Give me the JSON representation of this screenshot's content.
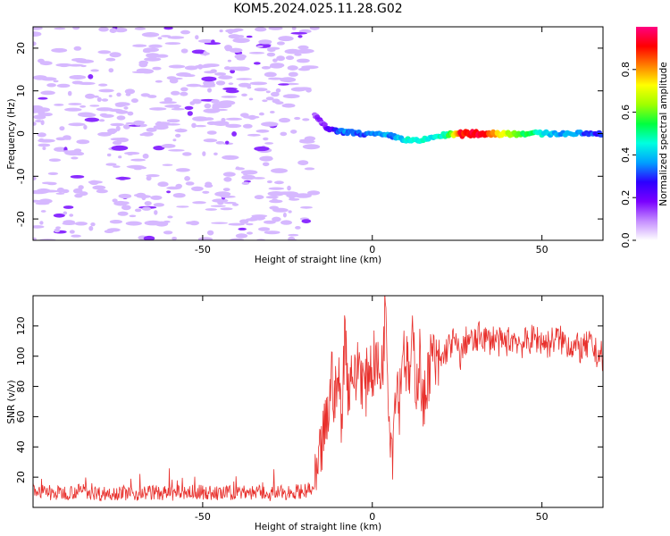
{
  "title": "KOM5.2024.025.11.28.G02",
  "colors": {
    "speckle": "#d6b8ff",
    "line": "#e8302c",
    "colorbar_stops": [
      "#ffffff",
      "#c48cff",
      "#7a00ff",
      "#2d00ff",
      "#00a0ff",
      "#00ffe0",
      "#00ff40",
      "#a0ff00",
      "#ffff00",
      "#ff8000",
      "#ff0000",
      "#ff0080"
    ]
  },
  "chart_data": [
    {
      "type": "heatmap",
      "xlabel": "Height of straight line (km)",
      "ylabel": "Frequency (Hz)",
      "xlim": [
        -100,
        68
      ],
      "ylim": [
        -25,
        25
      ],
      "xticks": [
        -50,
        0,
        50
      ],
      "yticks": [
        -20,
        -10,
        0,
        10,
        20
      ],
      "colorbar": {
        "label": "Normalized spectral amplitude",
        "range": [
          0,
          1
        ],
        "ticks": [
          "0.0",
          "0.2",
          "0.4",
          "0.6",
          "0.8"
        ]
      },
      "noise_region": {
        "x": [
          -100,
          -17
        ],
        "y": [
          -25,
          25
        ],
        "amplitude": 0.05
      },
      "signal_track": [
        {
          "x": -17,
          "y": 4.5,
          "amp": 0.12
        },
        {
          "x": -15,
          "y": 2.5,
          "amp": 0.15
        },
        {
          "x": -13,
          "y": 1.0,
          "amp": 0.2
        },
        {
          "x": -10,
          "y": 0.5,
          "amp": 0.3
        },
        {
          "x": -7,
          "y": 0.3,
          "amp": 0.35
        },
        {
          "x": -3,
          "y": 0.0,
          "amp": 0.32
        },
        {
          "x": 2,
          "y": -0.3,
          "amp": 0.38
        },
        {
          "x": 6,
          "y": -0.6,
          "amp": 0.35
        },
        {
          "x": 10,
          "y": -1.5,
          "amp": 0.45
        },
        {
          "x": 14,
          "y": -1.8,
          "amp": 0.48
        },
        {
          "x": 18,
          "y": -0.8,
          "amp": 0.42
        },
        {
          "x": 22,
          "y": -0.3,
          "amp": 0.5
        },
        {
          "x": 26,
          "y": -0.1,
          "amp": 0.9
        },
        {
          "x": 30,
          "y": 0.0,
          "amp": 0.95
        },
        {
          "x": 35,
          "y": 0.0,
          "amp": 0.85
        },
        {
          "x": 40,
          "y": 0.0,
          "amp": 0.65
        },
        {
          "x": 45,
          "y": 0.0,
          "amp": 0.55
        },
        {
          "x": 50,
          "y": 0.0,
          "amp": 0.45
        },
        {
          "x": 55,
          "y": 0.0,
          "amp": 0.38
        },
        {
          "x": 60,
          "y": 0.0,
          "amp": 0.35
        },
        {
          "x": 65,
          "y": 0.0,
          "amp": 0.3
        },
        {
          "x": 68,
          "y": 0.0,
          "amp": 0.28
        }
      ]
    },
    {
      "type": "line",
      "xlabel": "Height of straight line (km)",
      "ylabel": "SNR (v/v)",
      "xlim": [
        -100,
        68
      ],
      "ylim": [
        0,
        140
      ],
      "xticks": [
        -50,
        0,
        50
      ],
      "yticks": [
        20,
        40,
        60,
        80,
        100,
        120
      ],
      "series": [
        {
          "x": [
            -100,
            -95,
            -90,
            -85,
            -80,
            -75,
            -70,
            -65,
            -60,
            -55,
            -50,
            -45,
            -40,
            -35,
            -30,
            -25,
            -20,
            -17,
            -16,
            -15,
            -14,
            -13,
            -12,
            -11,
            -10,
            -9,
            -8,
            -7,
            -6,
            -5,
            -4,
            -3,
            -2,
            -1,
            0,
            1,
            2,
            3,
            4,
            5,
            6,
            7,
            8,
            9,
            10,
            11,
            12,
            13,
            14,
            15,
            16,
            17,
            18,
            19,
            20,
            22,
            24,
            26,
            28,
            30,
            32,
            34,
            36,
            38,
            40,
            42,
            44,
            46,
            48,
            50,
            52,
            54,
            56,
            58,
            60,
            62,
            64,
            66,
            68
          ],
          "values": [
            12,
            9,
            10,
            11,
            9,
            10,
            9,
            10,
            9,
            10,
            10,
            9,
            10,
            10,
            9,
            10,
            11,
            12,
            20,
            40,
            50,
            60,
            90,
            70,
            85,
            60,
            120,
            75,
            95,
            80,
            100,
            85,
            78,
            95,
            90,
            100,
            85,
            95,
            138,
            60,
            40,
            90,
            70,
            110,
            95,
            85,
            110,
            80,
            100,
            60,
            85,
            95,
            100,
            90,
            95,
            105,
            110,
            100,
            112,
            108,
            115,
            110,
            112,
            108,
            110,
            112,
            108,
            110,
            112,
            110,
            108,
            112,
            110,
            108,
            106,
            104,
            108,
            102,
            100
          ]
        }
      ]
    }
  ]
}
